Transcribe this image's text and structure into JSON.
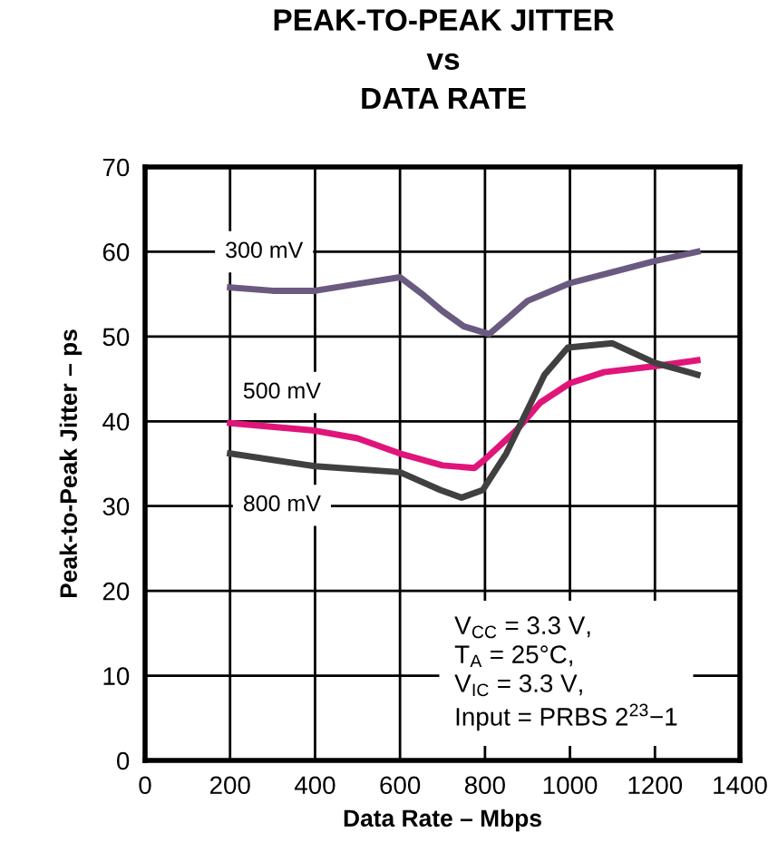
{
  "chart_data": {
    "type": "line",
    "title": "PEAK-TO-PEAK JITTER\nvs\nDATA RATE",
    "xlabel": "Data Rate – Mbps",
    "ylabel": "Peak-to-Peak Jitter – ps",
    "xlim": [
      0,
      1400
    ],
    "xticks": [
      0,
      200,
      400,
      600,
      800,
      1000,
      1200,
      1400
    ],
    "ylim": [
      0,
      70
    ],
    "yticks": [
      0,
      10,
      20,
      30,
      40,
      50,
      60,
      70
    ],
    "grid": true,
    "legend": false,
    "marker": "none",
    "line_style": "solid",
    "series": [
      {
        "name": "300 mV",
        "color": "#6a5a80",
        "x": [
          200,
          300,
          400,
          500,
          600,
          650,
          700,
          750,
          810,
          850,
          900,
          1000,
          1100,
          1200,
          1300
        ],
        "values": [
          55.8,
          55.4,
          55.4,
          56.2,
          57.0,
          55.1,
          53.0,
          51.2,
          50.3,
          52.0,
          54.2,
          56.3,
          57.6,
          58.9,
          60.0
        ]
      },
      {
        "name": "500 mV",
        "color": "#e0157a",
        "x": [
          200,
          400,
          500,
          600,
          700,
          775,
          800,
          875,
          930,
          1000,
          1080,
          1200,
          1300
        ],
        "values": [
          39.8,
          38.9,
          38.0,
          36.2,
          34.8,
          34.5,
          35.5,
          39.0,
          42.2,
          44.5,
          45.8,
          46.5,
          47.2
        ]
      },
      {
        "name": "800 mV",
        "color": "#404040",
        "x": [
          200,
          400,
          600,
          695,
          745,
          795,
          850,
          940,
          995,
          1100,
          1200,
          1300
        ],
        "values": [
          36.2,
          34.7,
          34.0,
          31.9,
          31.0,
          31.9,
          36.2,
          45.5,
          48.7,
          49.2,
          46.9,
          45.5
        ]
      }
    ],
    "annotations": [
      "V$_{CC}$ = 3.3 V,\nT$_{A}$ = 25°C,\nV$_{IC}$ = 3.3 V,\nInput = PRBS 2$^{23}$−1"
    ]
  }
}
